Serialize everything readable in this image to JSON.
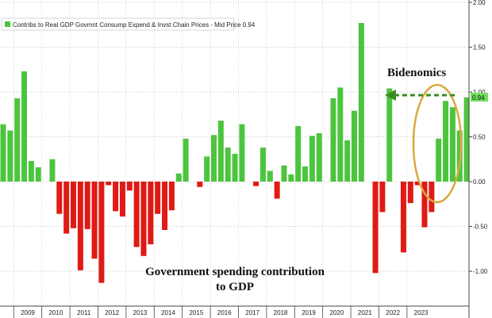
{
  "chart_data": {
    "type": "bar",
    "legend": "Contribs to Real GDP Govmnt Consump Expend & Invst Chain Prices - Mid Price 0.94",
    "current_value_label": "0.94",
    "ylim": [
      -1.4,
      2.0
    ],
    "yticks": [
      "2.00",
      "1.50",
      "1.00",
      "0.50",
      "0.00",
      "-0.50",
      "-1.00"
    ],
    "ytick_values": [
      2.0,
      1.5,
      1.0,
      0.5,
      0.0,
      -0.5,
      -1.0
    ],
    "x_start": "2008Q3",
    "year_labels": [
      "2009",
      "2010",
      "2011",
      "2012",
      "2013",
      "2014",
      "2015",
      "2016",
      "2017",
      "2018",
      "2019",
      "2020",
      "2021",
      "2022",
      "2023"
    ],
    "values": [
      0.64,
      0.57,
      0.93,
      1.23,
      0.23,
      0.16,
      0.0,
      0.25,
      -0.36,
      -0.58,
      -0.52,
      -0.99,
      -0.53,
      -0.86,
      -1.13,
      -0.04,
      -0.33,
      -0.39,
      -0.1,
      -0.73,
      -0.83,
      -0.7,
      -0.36,
      -0.54,
      -0.32,
      0.09,
      0.48,
      0.0,
      -0.06,
      0.28,
      0.52,
      0.68,
      0.38,
      0.31,
      0.64,
      0.0,
      -0.05,
      0.38,
      0.12,
      -0.19,
      0.18,
      0.08,
      0.62,
      0.17,
      0.51,
      0.54,
      0.0,
      0.93,
      1.05,
      0.46,
      0.79,
      1.77,
      0.0,
      -1.02,
      -0.34,
      1.04,
      0.0,
      -0.79,
      -0.24,
      -0.04,
      -0.51,
      -0.34,
      0.48,
      0.9,
      0.83,
      0.57,
      0.94
    ],
    "colors": {
      "positive": "#4cc53e",
      "negative": "#e01a14",
      "arrow": "#3a8a20",
      "ellipse": "#d9a93a",
      "price_tag": "#6ee05a"
    },
    "annotations": {
      "bidenomics": "Bidenomics",
      "caption_line1": "Government spending contribution",
      "caption_line2": "to GDP"
    }
  }
}
